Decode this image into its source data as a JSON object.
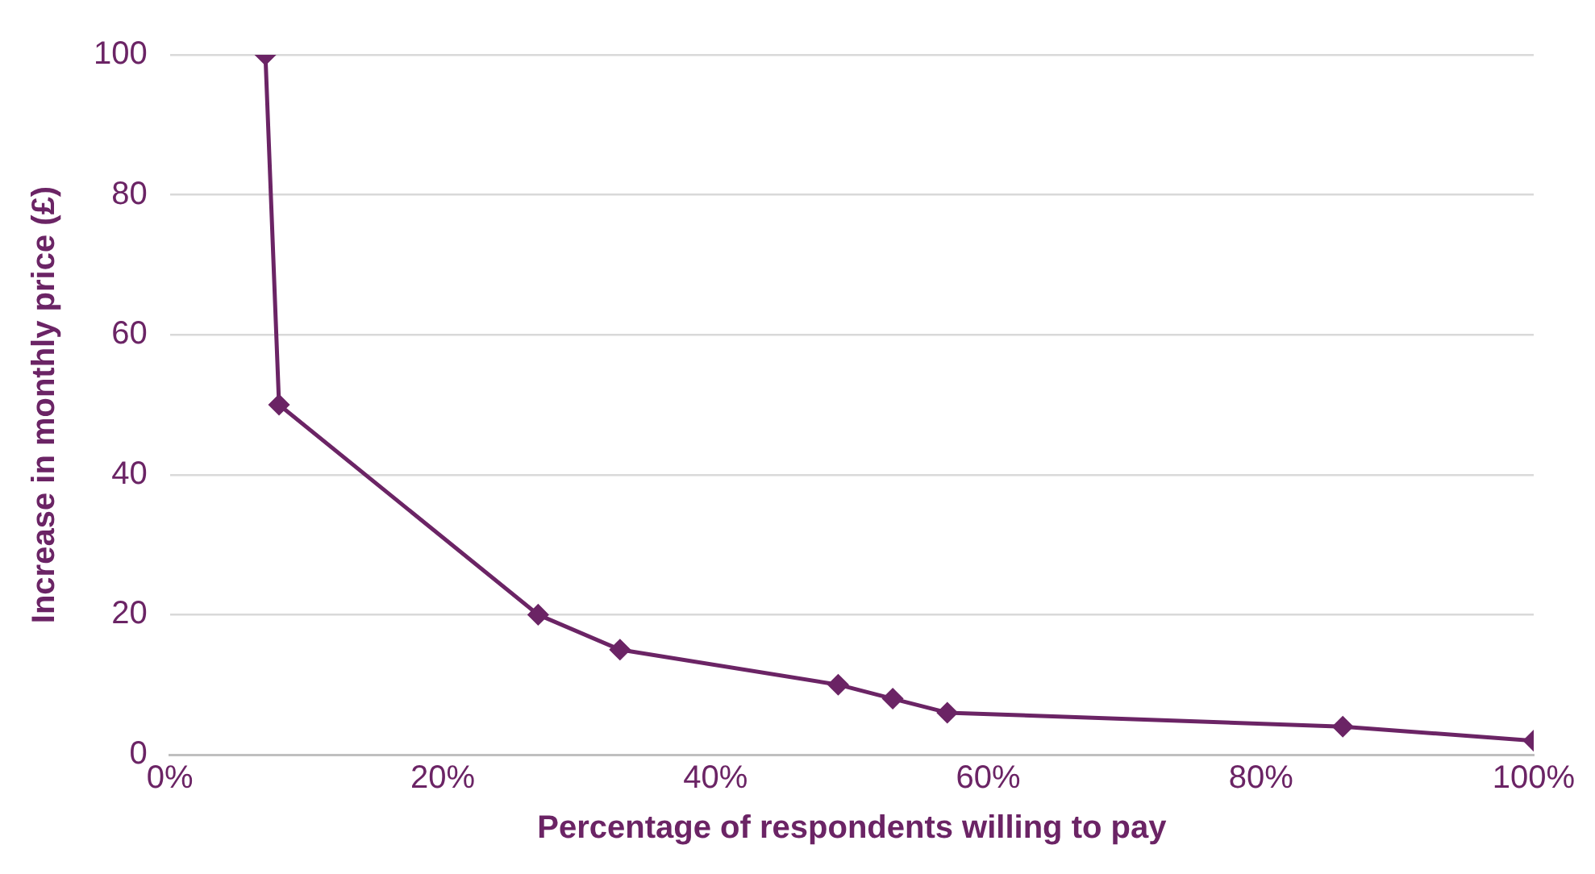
{
  "chart_data": {
    "type": "line",
    "xlabel": "Percentage of respondents willing to pay",
    "ylabel": "Increase in monthly price (£)",
    "x": [
      7,
      8,
      27,
      33,
      49,
      53,
      57,
      86,
      100
    ],
    "series": [
      {
        "color": "#6b2465",
        "values": [
          100,
          50,
          20,
          15,
          10,
          8,
          6,
          4,
          2
        ]
      }
    ],
    "xlim": [
      0,
      100
    ],
    "xticks": [
      {
        "value": 0,
        "label": "0%"
      },
      {
        "value": 20,
        "label": "20%"
      },
      {
        "value": 40,
        "label": "40%"
      },
      {
        "value": 60,
        "label": "60%"
      },
      {
        "value": 80,
        "label": "80%"
      },
      {
        "value": 100,
        "label": "100%"
      }
    ],
    "ylim": [
      0,
      100
    ],
    "yticks": [
      0,
      20,
      40,
      60,
      80,
      100
    ],
    "grid": "y",
    "legend": false,
    "marker": "diamond",
    "line_style": "solid"
  }
}
